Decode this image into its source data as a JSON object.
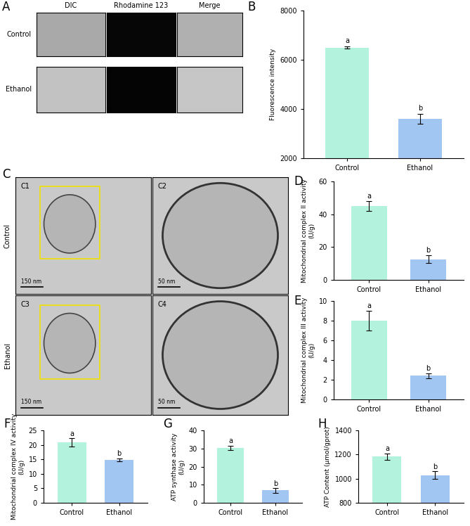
{
  "chart_data": [
    {
      "panel": "B",
      "type": "bar",
      "categories": [
        "Control",
        "Ethanol"
      ],
      "values": [
        6500,
        3600
      ],
      "errors": [
        30,
        200
      ],
      "annotations": [
        "a",
        "b"
      ],
      "colors": [
        "#b3f3dd",
        "#a2c6f2"
      ],
      "ylabel": "Fluorescence intensity",
      "ylim": [
        2000,
        8000
      ],
      "yticks": [
        2000,
        4000,
        6000,
        8000
      ]
    },
    {
      "panel": "D",
      "type": "bar",
      "categories": [
        "Control",
        "Ethanol"
      ],
      "values": [
        45,
        12.5
      ],
      "errors": [
        3,
        2.3
      ],
      "annotations": [
        "a",
        "b"
      ],
      "colors": [
        "#b3f3dd",
        "#a2c6f2"
      ],
      "ylabel": "Mitochondrial complex II activity\n(U/g)",
      "ylim": [
        0,
        60
      ],
      "yticks": [
        0,
        20,
        40,
        60
      ]
    },
    {
      "panel": "E",
      "type": "bar",
      "categories": [
        "Control",
        "Ethanol"
      ],
      "values": [
        8.0,
        2.4
      ],
      "errors": [
        1.0,
        0.25
      ],
      "annotations": [
        "a",
        "b"
      ],
      "colors": [
        "#b3f3dd",
        "#a2c6f2"
      ],
      "ylabel": "Mitochondrial complex III activity\n(U/g)",
      "ylim": [
        0,
        10
      ],
      "yticks": [
        0,
        2,
        4,
        6,
        8,
        10
      ]
    },
    {
      "panel": "F",
      "type": "bar",
      "categories": [
        "Control",
        "Ethanol"
      ],
      "values": [
        20.8,
        14.8
      ],
      "errors": [
        1.5,
        0.6
      ],
      "annotations": [
        "a",
        "b"
      ],
      "colors": [
        "#b3f3dd",
        "#a2c6f2"
      ],
      "ylabel": "Mitochondrial complex IV activity\n(U/g)",
      "ylim": [
        0,
        25
      ],
      "yticks": [
        0,
        5,
        10,
        15,
        20,
        25
      ]
    },
    {
      "panel": "G",
      "type": "bar",
      "categories": [
        "Control",
        "Ethanol"
      ],
      "values": [
        30.3,
        6.8
      ],
      "errors": [
        1.2,
        1.2
      ],
      "annotations": [
        "a",
        "b"
      ],
      "colors": [
        "#b3f3dd",
        "#a2c6f2"
      ],
      "ylabel": "ATP synthase activity\n(U/g)",
      "ylim": [
        0,
        40
      ],
      "yticks": [
        0,
        10,
        20,
        30,
        40
      ]
    },
    {
      "panel": "H",
      "type": "bar",
      "categories": [
        "Control",
        "Ethanol"
      ],
      "values": [
        1183,
        1030
      ],
      "errors": [
        25,
        30
      ],
      "annotations": [
        "a",
        "b"
      ],
      "colors": [
        "#b3f3dd",
        "#a2c6f2"
      ],
      "ylabel": "ATP Content (μmol/gprot)",
      "ylim": [
        800,
        1400
      ],
      "yticks": [
        800,
        1000,
        1200,
        1400
      ]
    }
  ],
  "image_panels": {
    "A": {
      "label": "A",
      "columns": [
        "DIC",
        "Rhodamine 123",
        "Merge"
      ],
      "rows": [
        "Control",
        "Ethanol"
      ]
    },
    "C": {
      "label": "C",
      "rows": [
        "Control",
        "Ethanol"
      ],
      "images": [
        {
          "label": "C1",
          "scale_bar": "150 nm"
        },
        {
          "label": "C2",
          "scale_bar": "50 nm"
        },
        {
          "label": "C3",
          "scale_bar": "150 nm"
        },
        {
          "label": "C4",
          "scale_bar": "50 nm"
        }
      ]
    }
  }
}
